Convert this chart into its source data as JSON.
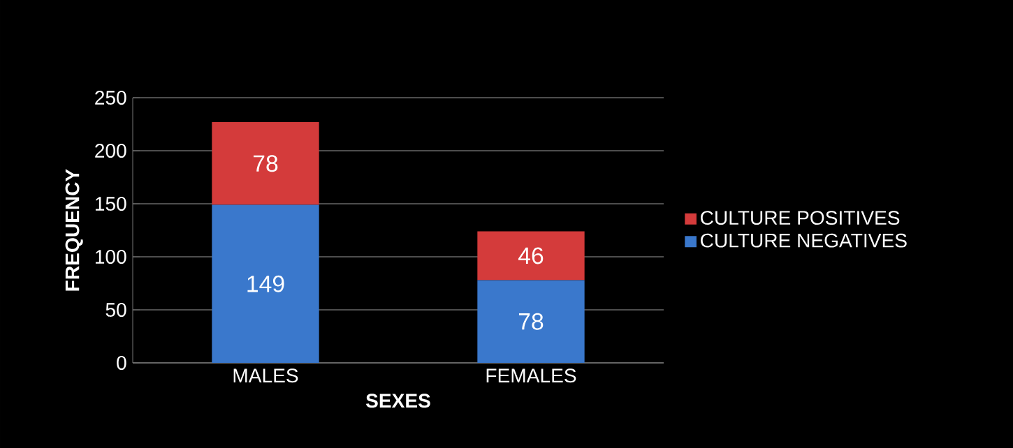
{
  "chart_data": {
    "type": "bar",
    "stacked": true,
    "xlabel": "SEXES",
    "ylabel": "FREQUENCY",
    "categories": [
      "MALES",
      "FEMALES"
    ],
    "series": [
      {
        "name": "CULTURE NEGATIVES",
        "color": "#3a78cc",
        "values": [
          149,
          78
        ]
      },
      {
        "name": "CULTURE POSITIVES",
        "color": "#d43b3b",
        "values": [
          78,
          46
        ]
      }
    ],
    "ylim": [
      0,
      250
    ],
    "yticks": [
      0,
      50,
      100,
      150,
      200,
      250
    ],
    "grid": "y",
    "legend": "right",
    "data_labels": true
  }
}
